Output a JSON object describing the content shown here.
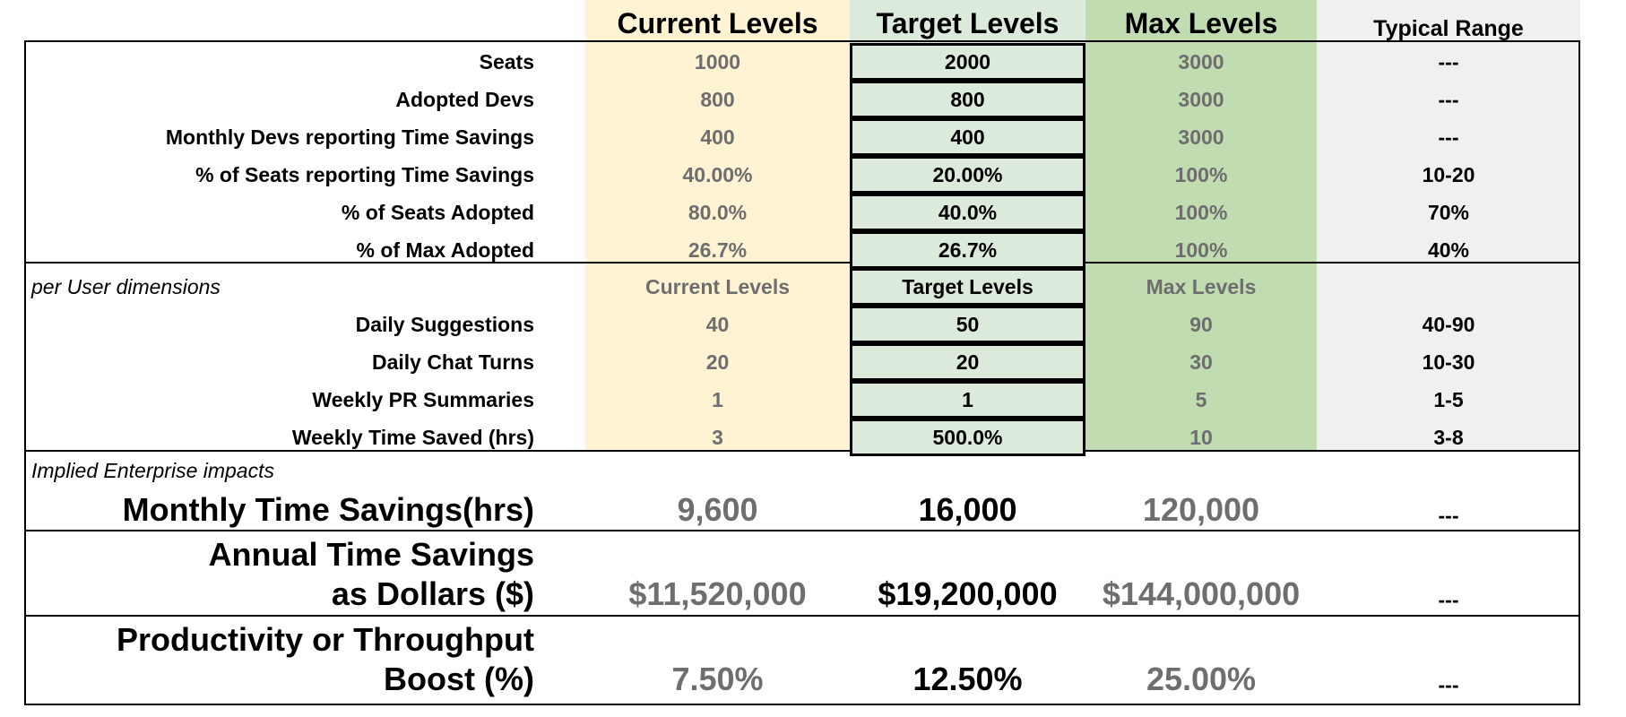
{
  "headers": {
    "current": "Current Levels",
    "target": "Target Levels",
    "max": "Max Levels",
    "typical": "Typical Range"
  },
  "top_rows": [
    {
      "label": "Seats",
      "current": "1000",
      "target": "2000",
      "max": "3000",
      "typical": "---"
    },
    {
      "label": "Adopted Devs",
      "current": "800",
      "target": "800",
      "max": "3000",
      "typical": "---"
    },
    {
      "label": "Monthly Devs reporting Time Savings",
      "current": "400",
      "target": "400",
      "max": "3000",
      "typical": "---"
    },
    {
      "label": "% of Seats reporting Time Savings",
      "current": "40.00%",
      "target": "20.00%",
      "max": "100%",
      "typical": "10-20"
    },
    {
      "label": "% of Seats Adopted",
      "current": "80.0%",
      "target": "40.0%",
      "max": "100%",
      "typical": "70%"
    },
    {
      "label": "% of Max Adopted",
      "current": "26.7%",
      "target": "26.7%",
      "max": "100%",
      "typical": "40%"
    }
  ],
  "per_user": {
    "section_label": "per User dimensions",
    "subheaders": {
      "current": "Current Levels",
      "target": "Target Levels",
      "max": "Max Levels"
    },
    "rows": [
      {
        "label": "Daily Suggestions",
        "current": "40",
        "target": "50",
        "max": "90",
        "typical": "40-90"
      },
      {
        "label": "Daily Chat Turns",
        "current": "20",
        "target": "20",
        "max": "30",
        "typical": "10-30"
      },
      {
        "label": "Weekly PR Summaries",
        "current": "1",
        "target": "1",
        "max": "5",
        "typical": "1-5"
      },
      {
        "label": "Weekly Time Saved (hrs)",
        "current": "3",
        "target": "500.0%",
        "max": "10",
        "typical": "3-8"
      }
    ]
  },
  "impacts": {
    "section_label": "Implied Enterprise impacts",
    "monthly": {
      "label": "Monthly Time Savings(hrs)",
      "current": "9,600",
      "target": "16,000",
      "max": "120,000",
      "typical": "---"
    },
    "annual": {
      "label_line1": "Annual Time Savings",
      "label_line2": "as Dollars ($)",
      "current": "$11,520,000",
      "target": "$19,200,000",
      "max": "$144,000,000",
      "typical": "---"
    },
    "productivity": {
      "label_line1": "Productivity or Throughput",
      "label_line2": "Boost (%)",
      "current": "7.50%",
      "target": "12.50%",
      "max": "25.00%",
      "typical": "---"
    }
  }
}
